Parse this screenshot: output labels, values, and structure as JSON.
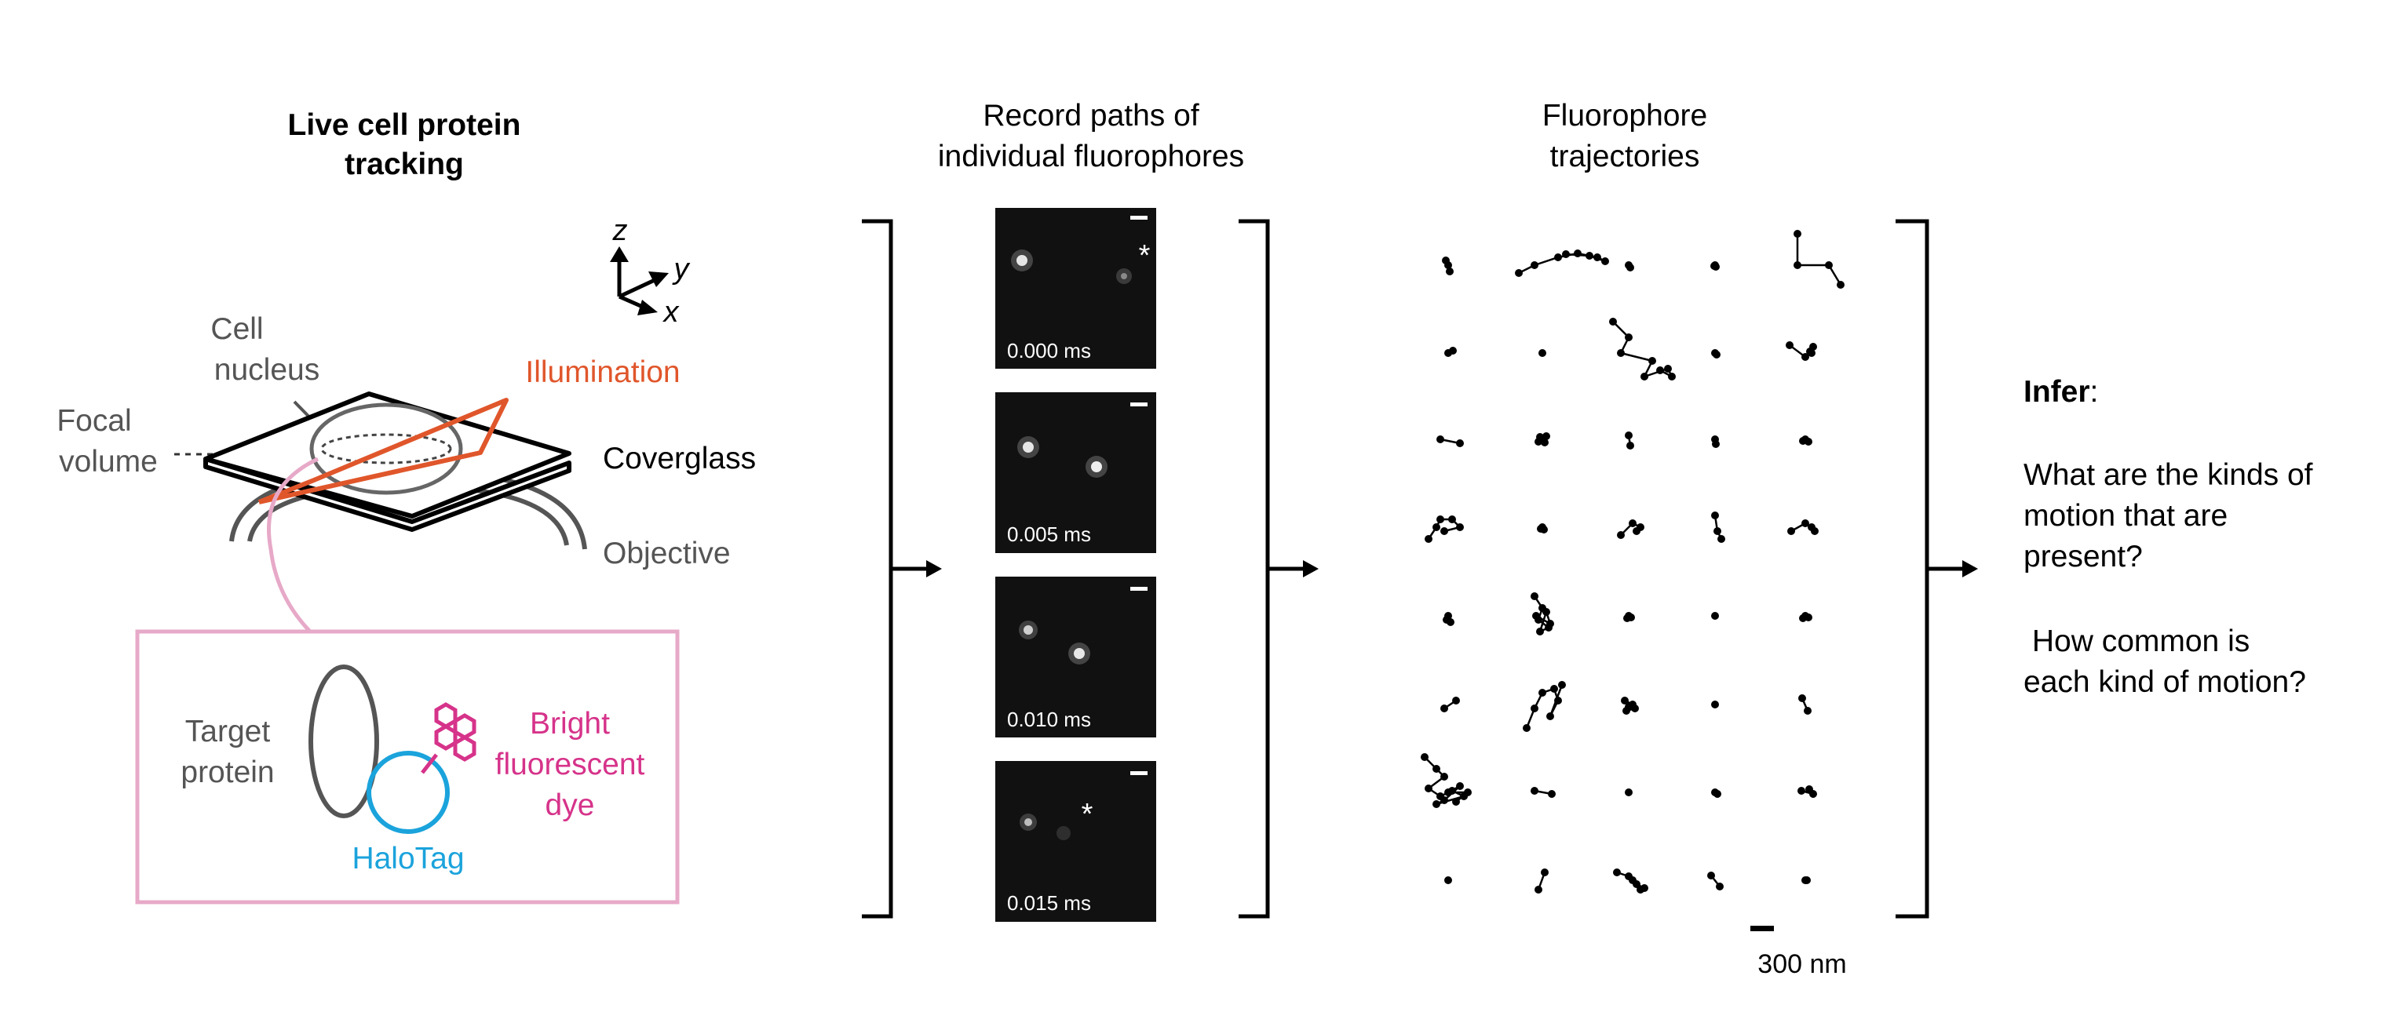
{
  "panel1": {
    "title_line1": "Live cell protein",
    "title_line2": "tracking",
    "axes": {
      "z": "z",
      "y": "y",
      "x": "x"
    },
    "cell_nucleus_line1": "Cell",
    "cell_nucleus_line2": "nucleus",
    "focal_line1": "Focal",
    "focal_line2": "volume",
    "illumination": "Illumination",
    "coverglass": "Coverglass",
    "objective": "Objective",
    "inset": {
      "target_line1": "Target",
      "target_line2": "protein",
      "dye_line1": "Bright",
      "dye_line2": "fluorescent",
      "dye_line3": "dye",
      "halotag": "HaloTag"
    }
  },
  "panel2": {
    "title_line1": "Record paths of",
    "title_line2": "individual fluorophores",
    "frames": [
      {
        "time": "0.000 ms",
        "star": "*"
      },
      {
        "time": "0.005 ms"
      },
      {
        "time": "0.010 ms"
      },
      {
        "time": "0.015 ms",
        "star": "*"
      }
    ]
  },
  "panel3": {
    "title_line1": "Fluorophore",
    "title_line2": "trajectories",
    "scale_label": "300 nm"
  },
  "panel4": {
    "infer_word": "Infer",
    "infer_colon": ":",
    "q1_line1": "What are the kinds of",
    "q1_line2": "motion that are",
    "q1_line3": "present?",
    "q2_line1": " How common is",
    "q2_line2": "each kind of motion?"
  },
  "colors": {
    "illumination": "#e0562b",
    "dye": "#d6338a",
    "halotag": "#1ba3dc",
    "inset_border": "#e7a9c8",
    "gray_text": "#555555"
  }
}
